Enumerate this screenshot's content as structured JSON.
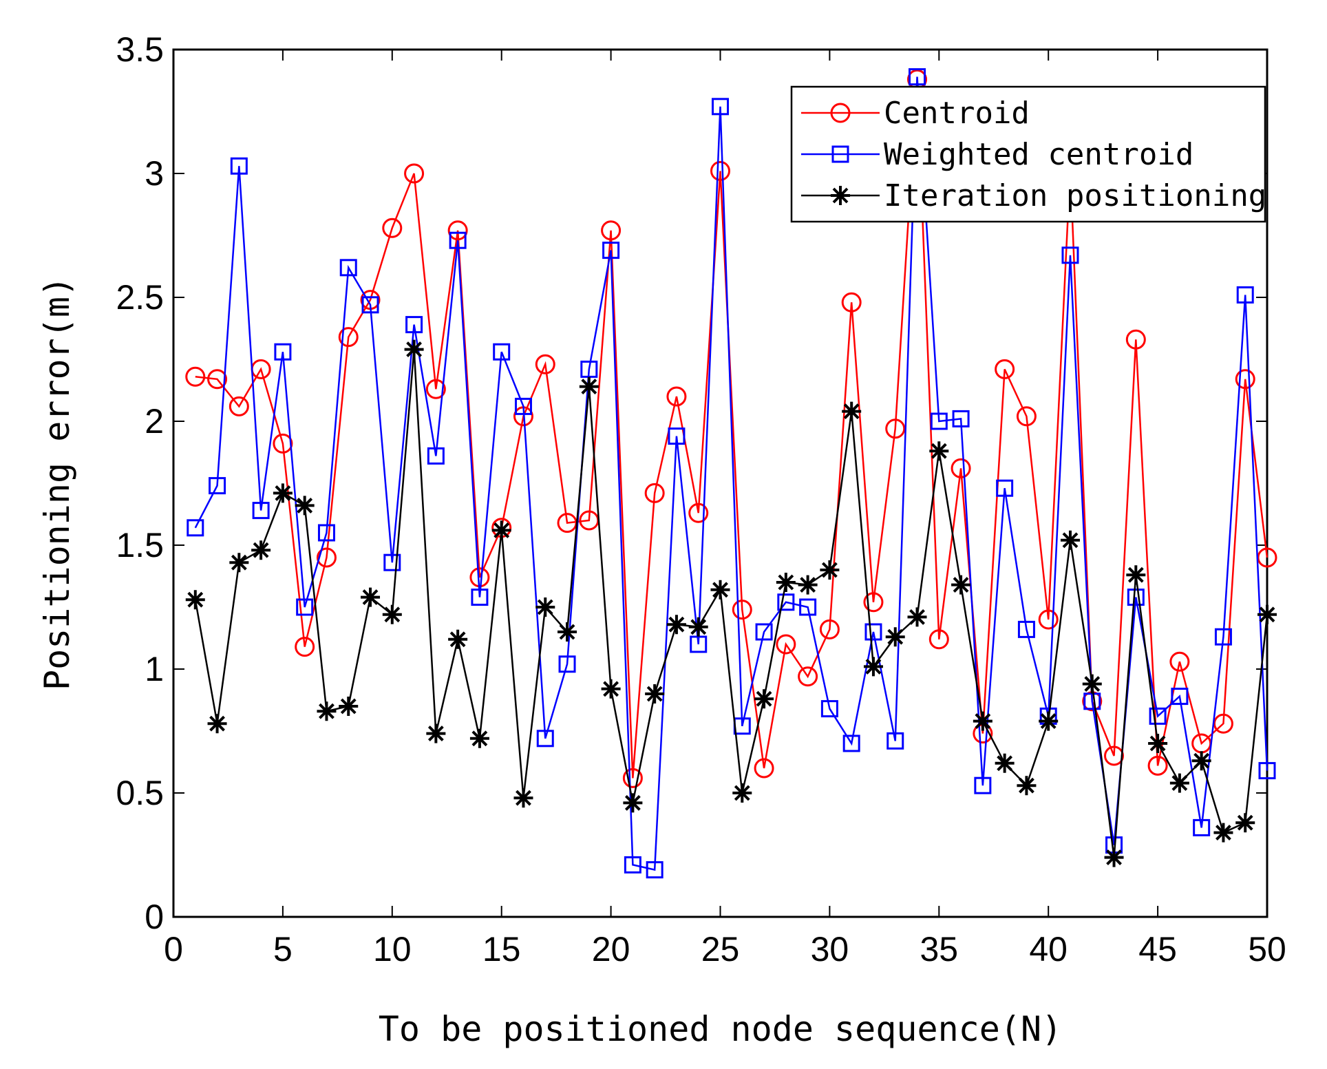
{
  "chart_data": {
    "type": "line",
    "title": "",
    "xlabel": "To be positioned node sequence(N)",
    "ylabel": "Positioning error(m)",
    "xlim": [
      0,
      50
    ],
    "ylim": [
      0,
      3.5
    ],
    "xticks": [
      0,
      5,
      10,
      15,
      20,
      25,
      30,
      35,
      40,
      45,
      50
    ],
    "yticks": [
      0,
      0.5,
      1,
      1.5,
      2,
      2.5,
      3,
      3.5
    ],
    "ytick_labels": [
      "0",
      "0.5",
      "1",
      "1.5",
      "2",
      "2.5",
      "3",
      "3.5"
    ],
    "grid": false,
    "legend_position": "top-right",
    "x": [
      1,
      2,
      3,
      4,
      5,
      6,
      7,
      8,
      9,
      10,
      11,
      12,
      13,
      14,
      15,
      16,
      17,
      18,
      19,
      20,
      21,
      22,
      23,
      24,
      25,
      26,
      27,
      28,
      29,
      30,
      31,
      32,
      33,
      34,
      35,
      36,
      37,
      38,
      39,
      40,
      41,
      42,
      43,
      44,
      45,
      46,
      47,
      48,
      49,
      50
    ],
    "series": [
      {
        "name": "Centroid",
        "color": "#ff0000",
        "marker": "circle",
        "values": [
          2.18,
          2.17,
          2.06,
          2.21,
          1.91,
          1.09,
          1.45,
          2.34,
          2.49,
          2.78,
          3.0,
          2.13,
          2.77,
          1.37,
          1.57,
          2.02,
          2.23,
          1.59,
          1.6,
          2.77,
          0.56,
          1.71,
          2.1,
          1.63,
          3.01,
          1.24,
          0.6,
          1.1,
          0.97,
          1.16,
          2.48,
          1.27,
          1.97,
          3.38,
          1.12,
          1.81,
          0.74,
          2.21,
          2.02,
          1.2,
          3.02,
          0.87,
          0.65,
          2.33,
          0.61,
          1.03,
          0.7,
          0.78,
          2.17,
          1.45
        ]
      },
      {
        "name": "Weighted centroid",
        "color": "#0000ff",
        "marker": "square",
        "values": [
          1.57,
          1.74,
          3.03,
          1.64,
          2.28,
          1.25,
          1.55,
          2.62,
          2.47,
          1.43,
          2.39,
          1.86,
          2.73,
          1.29,
          2.28,
          2.06,
          0.72,
          1.02,
          2.21,
          2.69,
          0.21,
          0.19,
          1.94,
          1.1,
          3.27,
          0.77,
          1.15,
          1.27,
          1.25,
          0.84,
          0.7,
          1.15,
          0.71,
          3.39,
          2.0,
          2.01,
          0.53,
          1.73,
          1.16,
          0.81,
          2.67,
          0.87,
          0.29,
          1.29,
          0.81,
          0.89,
          0.36,
          1.13,
          2.51,
          0.59
        ]
      },
      {
        "name": "Iteration positioning",
        "color": "#000000",
        "marker": "asterisk",
        "values": [
          1.28,
          0.78,
          1.43,
          1.48,
          1.71,
          1.66,
          0.83,
          0.85,
          1.29,
          1.22,
          2.29,
          0.74,
          1.12,
          0.72,
          1.56,
          0.48,
          1.25,
          1.15,
          2.14,
          0.92,
          0.46,
          0.9,
          1.18,
          1.17,
          1.32,
          0.5,
          0.88,
          1.35,
          1.34,
          1.4,
          2.04,
          1.01,
          1.13,
          1.21,
          1.88,
          1.34,
          0.79,
          0.62,
          0.53,
          0.79,
          1.52,
          0.94,
          0.24,
          1.38,
          0.7,
          0.54,
          0.63,
          0.34,
          0.38,
          1.22
        ]
      }
    ]
  }
}
